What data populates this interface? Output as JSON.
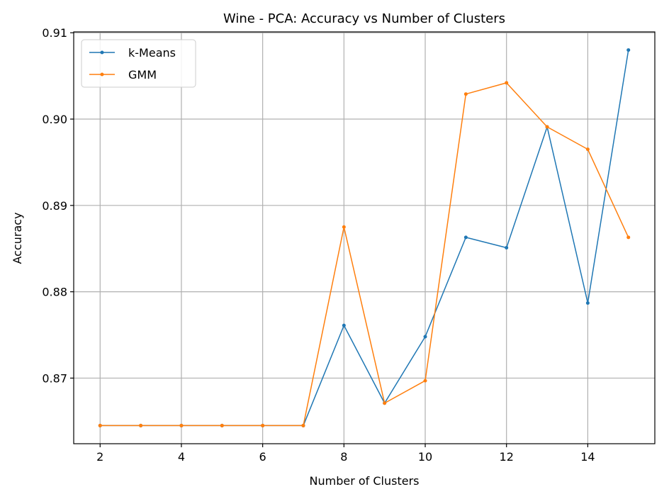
{
  "chart_data": {
    "type": "line",
    "title": "Wine - PCA: Accuracy vs Number of Clusters",
    "xlabel": "Number of Clusters",
    "ylabel": "Accuracy",
    "x": [
      2,
      3,
      4,
      5,
      6,
      7,
      8,
      9,
      10,
      11,
      12,
      13,
      14,
      15
    ],
    "xlim": [
      1.35,
      15.65
    ],
    "ylim": [
      0.8624,
      0.9101
    ],
    "xticks": [
      2,
      4,
      6,
      8,
      10,
      12,
      14
    ],
    "yticks": [
      0.87,
      0.88,
      0.89,
      0.9,
      0.91
    ],
    "ytick_labels": [
      "0.87",
      "0.88",
      "0.89",
      "0.90",
      "0.91"
    ],
    "grid": true,
    "legend_position": "top-left",
    "series": [
      {
        "name": "k-Means",
        "color": "#1f77b4",
        "values": [
          0.8645,
          0.8645,
          0.8645,
          0.8645,
          0.8645,
          0.8645,
          0.8761,
          0.8671,
          0.8748,
          0.8863,
          0.8851,
          0.8991,
          0.8787,
          0.908
        ]
      },
      {
        "name": "GMM",
        "color": "#ff7f0e",
        "values": [
          0.8645,
          0.8645,
          0.8645,
          0.8645,
          0.8645,
          0.8645,
          0.8875,
          0.8671,
          0.8697,
          0.9029,
          0.9042,
          0.8991,
          0.8965,
          0.8863
        ]
      }
    ]
  }
}
